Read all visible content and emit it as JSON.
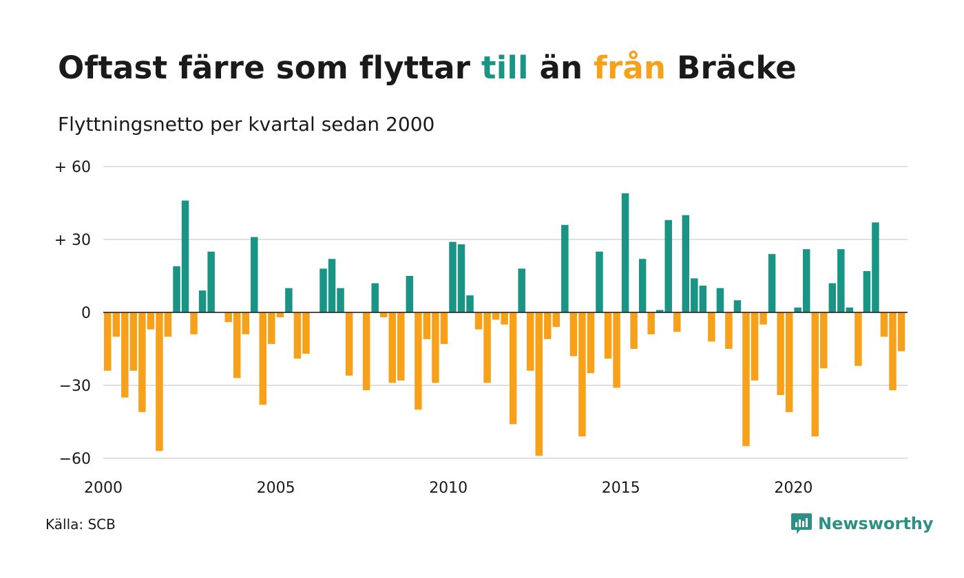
{
  "title": {
    "part1": "Oftast färre som flyttar ",
    "part2": "till",
    "part3": " än ",
    "part4": "från",
    "part5": " Bräcke",
    "color_till": "#1a9485",
    "color_fran": "#f7a11a"
  },
  "subtitle": "Flyttningsnetto per kvartal sedan 2000",
  "source": "Källa: SCB",
  "brand": {
    "name": "Newsworthy",
    "icon": "newsworthy-chart-bubble-icon",
    "color": "#2f8f84"
  },
  "chart_data": {
    "type": "bar",
    "x_start_year": 2000,
    "periods_per_year": 4,
    "values": [
      -24,
      -10,
      -35,
      -24,
      -41,
      -7,
      -57,
      -10,
      19,
      46,
      -9,
      9,
      25,
      0,
      -4,
      -27,
      -9,
      31,
      -38,
      -13,
      -2,
      10,
      -19,
      -17,
      0,
      18,
      22,
      10,
      -26,
      0,
      -32,
      12,
      -2,
      -29,
      -28,
      15,
      -40,
      -11,
      -29,
      -13,
      29,
      28,
      7,
      -7,
      -29,
      -3,
      -5,
      -46,
      18,
      -24,
      -59,
      -11,
      -6,
      36,
      -18,
      -51,
      -25,
      25,
      -19,
      -31,
      49,
      -15,
      22,
      -9,
      1,
      38,
      -8,
      40,
      14,
      11,
      -12,
      10,
      -15,
      5,
      -55,
      -28,
      -5,
      24,
      -34,
      -41,
      2,
      26,
      -51,
      -23,
      12,
      26,
      2,
      -22,
      17,
      37,
      -10,
      -32,
      -16
    ],
    "x_ticks": [
      "2000",
      "2005",
      "2010",
      "2015",
      "2020"
    ],
    "y_ticks": [
      {
        "value": 60,
        "label": "+ 60"
      },
      {
        "value": 30,
        "label": "+ 30"
      },
      {
        "value": 0,
        "label": "0"
      },
      {
        "value": -30,
        "label": "−30"
      },
      {
        "value": -60,
        "label": "−60"
      }
    ],
    "ylim": [
      -60,
      60
    ],
    "grid": true,
    "positive_color": "#1a9485",
    "negative_color": "#f7a11a"
  }
}
